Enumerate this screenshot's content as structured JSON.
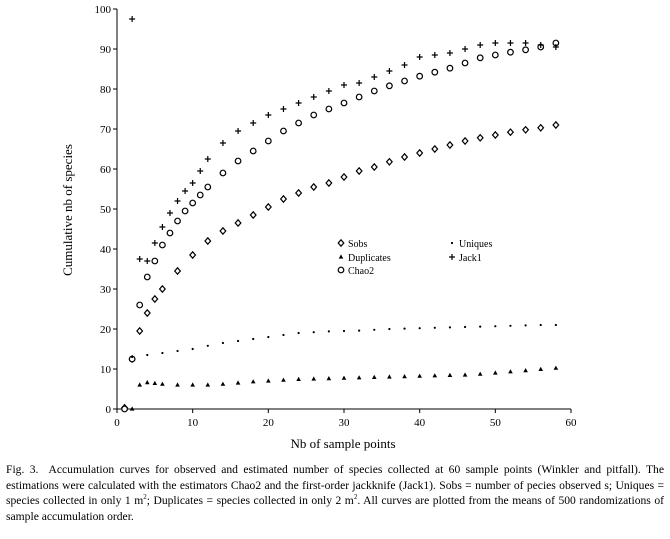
{
  "chart_data": {
    "type": "scatter",
    "title": "",
    "xlabel": "Nb of sample points",
    "ylabel": "Cumulative nb of species",
    "xlim": [
      0,
      60
    ],
    "ylim": [
      0,
      100
    ],
    "xticks": [
      0,
      10,
      20,
      30,
      40,
      50,
      60
    ],
    "yticks": [
      0,
      10,
      20,
      30,
      40,
      50,
      60,
      70,
      80,
      90,
      100
    ],
    "grid": false,
    "legend_position": "center-right",
    "series": [
      {
        "name": "Sobs",
        "marker": "diamond",
        "x": [
          1,
          2,
          3,
          4,
          5,
          6,
          8,
          10,
          12,
          14,
          16,
          18,
          20,
          22,
          24,
          26,
          28,
          30,
          32,
          34,
          36,
          38,
          40,
          42,
          44,
          46,
          48,
          50,
          52,
          54,
          56,
          58
        ],
        "y": [
          0.3,
          12.5,
          19.5,
          24,
          27.5,
          30,
          34.5,
          38.5,
          42,
          44.5,
          46.5,
          48.5,
          50.5,
          52.5,
          54,
          55.5,
          56.5,
          58,
          59.5,
          60.5,
          61.8,
          63,
          64,
          65,
          66,
          67,
          67.8,
          68.5,
          69.2,
          69.8,
          70.3,
          71
        ]
      },
      {
        "name": "Duplicates",
        "marker": "triangle",
        "x": [
          2,
          3,
          4,
          5,
          6,
          8,
          10,
          12,
          14,
          16,
          18,
          20,
          22,
          24,
          26,
          28,
          30,
          32,
          34,
          36,
          38,
          40,
          42,
          44,
          46,
          48,
          50,
          52,
          54,
          56,
          58
        ],
        "y": [
          0,
          6,
          6.6,
          6.4,
          6.2,
          6,
          6,
          6,
          6.2,
          6.5,
          6.8,
          7,
          7.2,
          7.4,
          7.5,
          7.6,
          7.7,
          7.8,
          7.9,
          8,
          8.1,
          8.2,
          8.3,
          8.4,
          8.5,
          8.7,
          9,
          9.3,
          9.6,
          9.9,
          10.2
        ]
      },
      {
        "name": "Chao2",
        "marker": "circle",
        "x": [
          1,
          2,
          3,
          4,
          5,
          6,
          7,
          8,
          9,
          10,
          11,
          12,
          14,
          16,
          18,
          20,
          22,
          24,
          26,
          28,
          30,
          32,
          34,
          36,
          38,
          40,
          42,
          44,
          46,
          48,
          50,
          52,
          54,
          56,
          58
        ],
        "y": [
          0,
          12.5,
          26,
          33,
          37,
          41,
          44,
          47,
          49.5,
          51.5,
          53.5,
          55.5,
          59,
          62,
          64.5,
          67,
          69.5,
          71.5,
          73.5,
          75,
          76.5,
          78,
          79.5,
          80.8,
          82,
          83.2,
          84.2,
          85.2,
          86.5,
          87.8,
          88.5,
          89.2,
          89.8,
          90.5,
          91.5
        ]
      },
      {
        "name": "Uniques",
        "marker": "dot",
        "x": [
          2,
          4,
          6,
          8,
          10,
          12,
          14,
          16,
          18,
          20,
          22,
          24,
          26,
          28,
          30,
          32,
          34,
          36,
          38,
          40,
          42,
          44,
          46,
          48,
          50,
          52,
          54,
          56,
          58
        ],
        "y": [
          13,
          13.5,
          14,
          14.5,
          15,
          15.8,
          16.5,
          17,
          17.5,
          18,
          18.5,
          19,
          19.2,
          19.4,
          19.5,
          19.6,
          19.8,
          20,
          20.1,
          20.2,
          20.3,
          20.4,
          20.5,
          20.6,
          20.7,
          20.8,
          20.9,
          21,
          21
        ]
      },
      {
        "name": "Jack1",
        "marker": "plus",
        "x": [
          2,
          3,
          4,
          5,
          6,
          7,
          8,
          9,
          10,
          11,
          12,
          14,
          16,
          18,
          20,
          22,
          24,
          26,
          28,
          30,
          32,
          34,
          36,
          38,
          40,
          42,
          44,
          46,
          48,
          50,
          52,
          54,
          56,
          58
        ],
        "y": [
          97.5,
          37.5,
          37,
          41.5,
          45.5,
          49,
          52,
          54.5,
          56.5,
          59.5,
          62.5,
          66.5,
          69.5,
          71.5,
          73.5,
          75,
          76.5,
          78,
          79.5,
          81,
          81.5,
          83,
          84.5,
          86,
          88,
          88.5,
          89,
          90,
          91,
          91.5,
          91.5,
          91.5,
          91,
          90.5
        ]
      }
    ]
  },
  "caption": {
    "label": "Fig. 3.",
    "pre_units": "Accumulation curves for observed and estimated number of species collected at 60 sample points (Winkler and pitfall).  The estimations were calculated with the estimators Chao2 and the first-order jackknife (Jack1).  Sobs = number of pecies observed s; Uniques =  species collected in only 1 m",
    "sup_1": "2",
    "middle": "; Duplicates = species collected in only 2 m",
    "sup_2": "2",
    "post_units": ". All curves are plotted from the means of 500 randomizations of sample accumulation order."
  }
}
